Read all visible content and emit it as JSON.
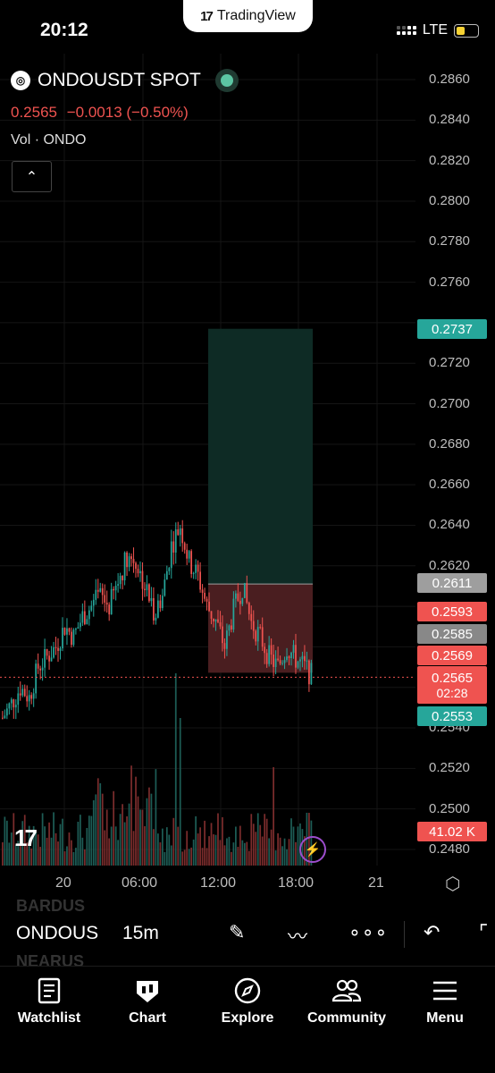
{
  "status_bar": {
    "time": "20:12",
    "app_badge": "TradingView",
    "network": "LTE"
  },
  "header": {
    "symbol": "ONDOUSDT SPOT",
    "price": "0.2565",
    "change": "−0.0013 (−0.50%)",
    "volume_label": "Vol · ONDO"
  },
  "colors": {
    "up": "#26a69a",
    "down": "#ef5350",
    "target_zone": "#0e2b25",
    "stop_zone": "#4a1e20",
    "accent": "#5cc6a3"
  },
  "price_axis": {
    "labels": [
      "0.2860",
      "0.2840",
      "0.2820",
      "0.2800",
      "0.2780",
      "0.2760",
      "0.2720",
      "0.2700",
      "0.2680",
      "0.2660",
      "0.2640",
      "0.2620",
      "0.2540",
      "0.2520",
      "0.2500",
      "0.2480"
    ],
    "tags": {
      "target": "0.2737",
      "entry": "0.2611",
      "high": "0.2593",
      "mid": "0.2585",
      "stop": "0.2569",
      "last": "0.2565",
      "countdown": "02:28",
      "low": "0.2553",
      "volume": "41.02 K"
    }
  },
  "time_axis": [
    "20",
    "06:00",
    "12:00",
    "18:00",
    "21"
  ],
  "toolbar": {
    "symbol": "ONDOUS",
    "interval": "15m",
    "bg_symbol_top": "BARDUS",
    "bg_symbol_bottom": "NEARUS"
  },
  "nav": [
    "Watchlist",
    "Chart",
    "Explore",
    "Community",
    "Menu"
  ],
  "chart_data": {
    "type": "candlestick",
    "ylim": [
      0.2475,
      0.2865
    ],
    "close_approx": [
      0.2545,
      0.2552,
      0.256,
      0.2555,
      0.257,
      0.2575,
      0.258,
      0.259,
      0.2585,
      0.2595,
      0.26,
      0.2605,
      0.26,
      0.2612,
      0.2625,
      0.2622,
      0.261,
      0.2598,
      0.2605,
      0.263,
      0.264,
      0.2622,
      0.2615,
      0.26,
      0.2593,
      0.258,
      0.2598,
      0.261,
      0.2592,
      0.2585,
      0.2575,
      0.257,
      0.258,
      0.2574,
      0.257,
      0.2565
    ],
    "position": {
      "target": 0.2737,
      "entry": 0.2611,
      "stop": 0.2569
    }
  }
}
